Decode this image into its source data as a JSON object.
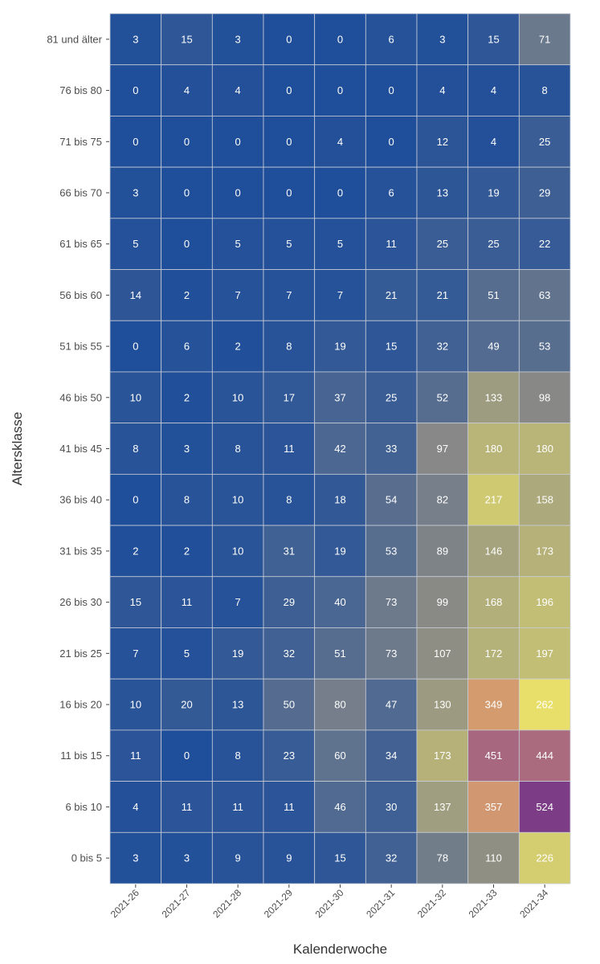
{
  "chart_data": {
    "type": "heatmap",
    "xlabel": "Kalenderwoche",
    "ylabel": "Altersklasse",
    "x": [
      "2021-26",
      "2021-27",
      "2021-28",
      "2021-29",
      "2021-30",
      "2021-31",
      "2021-32",
      "2021-33",
      "2021-34"
    ],
    "y": [
      "81 und älter",
      "76 bis 80",
      "71 bis 75",
      "66 bis 70",
      "61 bis 65",
      "56 bis 60",
      "51 bis 55",
      "46 bis 50",
      "41 bis 45",
      "36 bis 40",
      "31 bis 35",
      "26 bis 30",
      "21 bis 25",
      "16 bis 20",
      "11 bis 15",
      "6 bis 10",
      "0 bis 5"
    ],
    "values": [
      [
        3,
        15,
        3,
        0,
        0,
        6,
        3,
        15,
        71
      ],
      [
        0,
        4,
        4,
        0,
        0,
        0,
        4,
        4,
        8
      ],
      [
        0,
        0,
        0,
        0,
        4,
        0,
        12,
        4,
        25
      ],
      [
        3,
        0,
        0,
        0,
        0,
        6,
        13,
        19,
        29
      ],
      [
        5,
        0,
        5,
        5,
        5,
        11,
        25,
        25,
        22
      ],
      [
        14,
        2,
        7,
        7,
        7,
        21,
        21,
        51,
        63
      ],
      [
        0,
        6,
        2,
        8,
        19,
        15,
        32,
        49,
        53
      ],
      [
        10,
        2,
        10,
        17,
        37,
        25,
        52,
        133,
        98
      ],
      [
        8,
        3,
        8,
        11,
        42,
        33,
        97,
        180,
        180
      ],
      [
        0,
        8,
        10,
        8,
        18,
        54,
        82,
        217,
        158
      ],
      [
        2,
        2,
        10,
        31,
        19,
        53,
        89,
        146,
        173
      ],
      [
        15,
        11,
        7,
        29,
        40,
        73,
        99,
        168,
        196
      ],
      [
        7,
        5,
        19,
        32,
        51,
        73,
        107,
        172,
        197
      ],
      [
        10,
        20,
        13,
        50,
        80,
        47,
        130,
        349,
        262
      ],
      [
        11,
        0,
        8,
        23,
        60,
        34,
        173,
        451,
        444
      ],
      [
        4,
        11,
        11,
        11,
        46,
        30,
        137,
        357,
        524
      ],
      [
        3,
        3,
        9,
        9,
        15,
        32,
        78,
        110,
        226
      ]
    ],
    "color_scale": [
      "#1f4e9a",
      "#8a8a86",
      "#e8e06a",
      "#d49a6f",
      "#a7687f",
      "#7d3c86"
    ],
    "grid": true
  }
}
